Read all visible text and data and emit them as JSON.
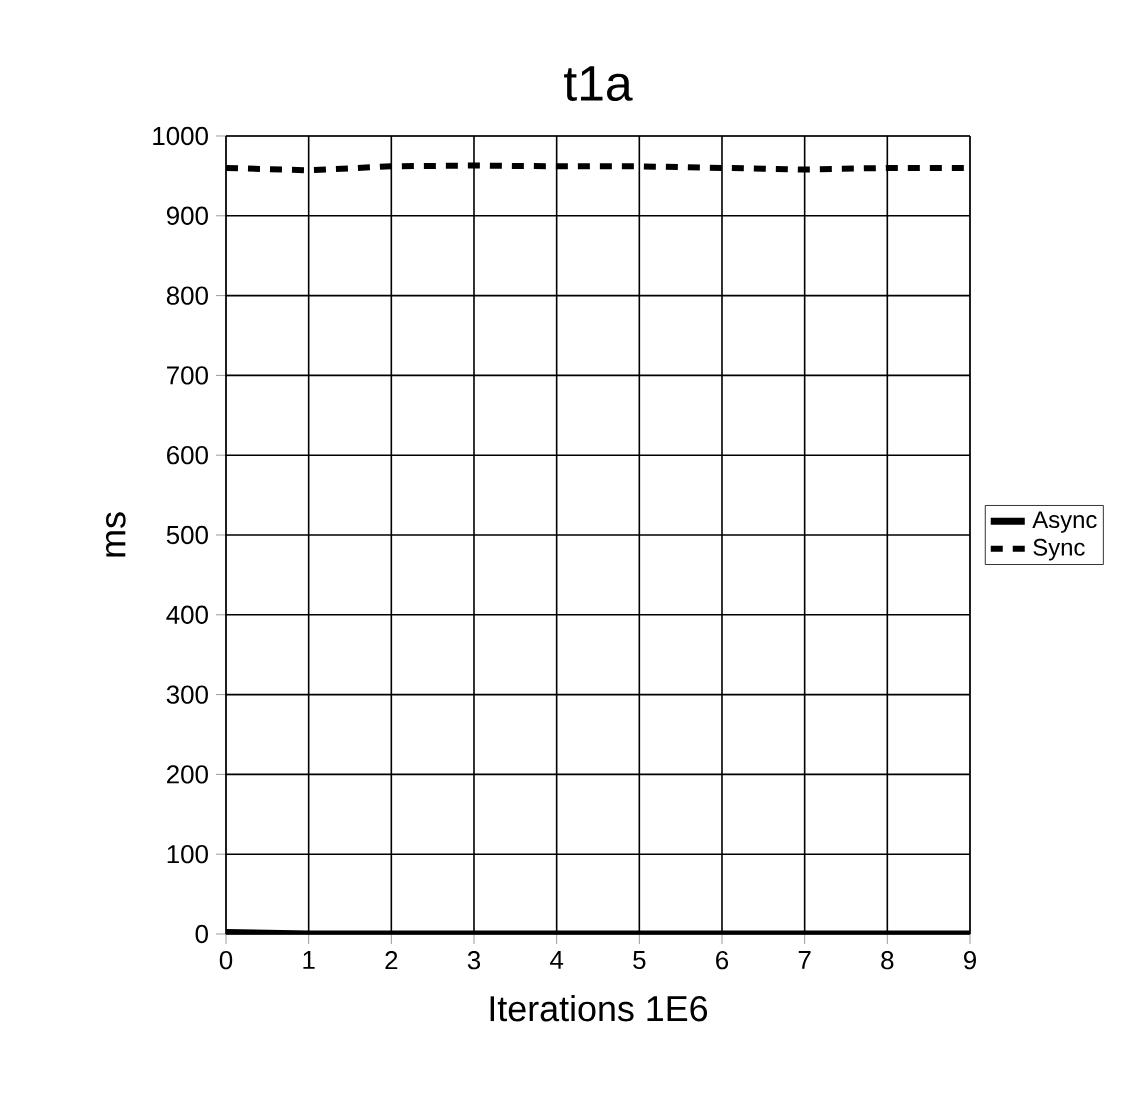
{
  "chart_data": {
    "type": "line",
    "title": "t1a",
    "xlabel": "Iterations 1E6",
    "ylabel": "ms",
    "x": [
      0,
      1,
      2,
      3,
      4,
      5,
      6,
      7,
      8,
      9
    ],
    "series": [
      {
        "name": "Async",
        "color": "#000000",
        "line_style": "solid",
        "values": [
          2,
          0,
          0,
          0,
          0,
          0,
          0,
          0,
          0,
          0
        ]
      },
      {
        "name": "Sync",
        "color": "#000000",
        "line_style": "dashed",
        "values": [
          960,
          957,
          962,
          963,
          962,
          962,
          960,
          958,
          960,
          960
        ]
      }
    ],
    "xlim": [
      0,
      9
    ],
    "ylim": [
      0,
      1000
    ],
    "xticks": [
      0,
      1,
      2,
      3,
      4,
      5,
      6,
      7,
      8,
      9
    ],
    "yticks": [
      0,
      100,
      200,
      300,
      400,
      500,
      600,
      700,
      800,
      900,
      1000
    ],
    "grid": true,
    "legend": "right",
    "marker": "none"
  }
}
